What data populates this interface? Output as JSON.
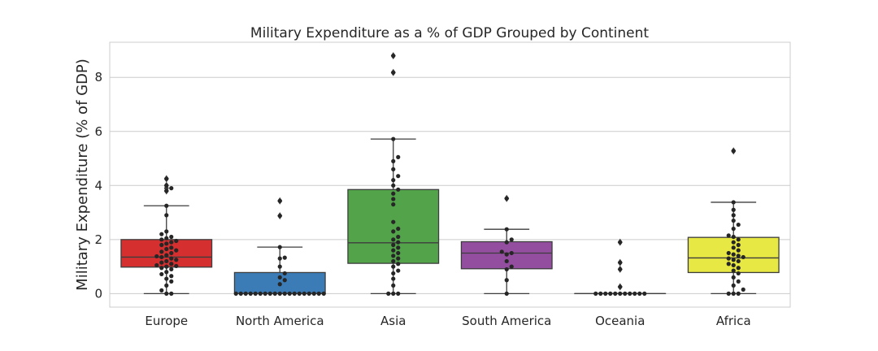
{
  "chart_data": {
    "type": "box",
    "title": "Military Expenditure as a % of GDP Grouped by Continent",
    "xlabel": "",
    "ylabel": "Military Expenditure (% of GDP)",
    "ylim": [
      -0.5,
      9.3
    ],
    "yticks": [
      0,
      2,
      4,
      6,
      8
    ],
    "grid": true,
    "categories": [
      "Europe",
      "North America",
      "Asia",
      "South America",
      "Oceania",
      "Africa"
    ],
    "colors": [
      "#d62f2f",
      "#3b7cb7",
      "#53a34b",
      "#944ea0",
      "#f07d1e",
      "#e8e845"
    ],
    "boxes": [
      {
        "category": "Europe",
        "q1": 0.98,
        "median": 1.35,
        "q3": 2.0,
        "whisker_low": 0.0,
        "whisker_high": 3.25,
        "outliers": [
          3.8,
          3.9,
          4.0,
          4.25
        ],
        "points": [
          0,
          0,
          0.12,
          0.3,
          0.45,
          0.55,
          0.65,
          0.72,
          0.8,
          0.9,
          0.95,
          1.0,
          1.02,
          1.05,
          1.1,
          1.15,
          1.2,
          1.25,
          1.3,
          1.35,
          1.38,
          1.42,
          1.5,
          1.55,
          1.6,
          1.65,
          1.7,
          1.8,
          1.85,
          1.9,
          1.95,
          2.0,
          2.05,
          2.1,
          2.2,
          2.3,
          2.9,
          3.25,
          3.8,
          3.9,
          4.0,
          4.25
        ]
      },
      {
        "category": "North America",
        "q1": 0.0,
        "median": 0.0,
        "q3": 0.78,
        "whisker_low": 0.0,
        "whisker_high": 1.72,
        "outliers": [
          2.88,
          3.43
        ],
        "points": [
          0,
          0,
          0,
          0,
          0,
          0,
          0,
          0,
          0,
          0,
          0,
          0,
          0,
          0,
          0,
          0,
          0,
          0,
          0,
          0.35,
          0.5,
          0.6,
          0.75,
          1.0,
          1.3,
          1.33,
          1.72,
          2.88,
          3.43
        ]
      },
      {
        "category": "Asia",
        "q1": 1.12,
        "median": 1.88,
        "q3": 3.85,
        "whisker_low": 0.0,
        "whisker_high": 5.72,
        "outliers": [
          8.18,
          8.8
        ],
        "points": [
          0,
          0,
          0,
          0.3,
          0.55,
          0.75,
          0.85,
          1.0,
          1.1,
          1.2,
          1.3,
          1.4,
          1.5,
          1.6,
          1.7,
          1.8,
          1.9,
          2.0,
          2.1,
          2.3,
          2.4,
          2.65,
          3.3,
          3.5,
          3.7,
          3.85,
          4.0,
          4.2,
          4.35,
          4.6,
          4.9,
          5.05,
          5.72,
          8.18,
          8.8
        ]
      },
      {
        "category": "South America",
        "q1": 0.92,
        "median": 1.5,
        "q3": 1.92,
        "whisker_low": 0.0,
        "whisker_high": 2.38,
        "outliers": [
          3.52
        ],
        "points": [
          0,
          0.5,
          0.9,
          1.0,
          1.2,
          1.45,
          1.5,
          1.55,
          1.9,
          2.0,
          2.38,
          3.52
        ]
      },
      {
        "category": "Oceania",
        "q1": 0.0,
        "median": 0.0,
        "q3": 0.0,
        "whisker_low": 0.0,
        "whisker_high": 0.0,
        "outliers": [
          0.25,
          0.9,
          1.15,
          1.9
        ],
        "points": [
          0,
          0,
          0,
          0,
          0,
          0,
          0,
          0,
          0,
          0,
          0,
          0.25,
          0.9,
          1.15,
          1.9
        ]
      },
      {
        "category": "Africa",
        "q1": 0.78,
        "median": 1.32,
        "q3": 2.08,
        "whisker_low": 0.0,
        "whisker_high": 3.38,
        "outliers": [
          5.28
        ],
        "points": [
          0,
          0,
          0,
          0.15,
          0.3,
          0.45,
          0.6,
          0.75,
          0.85,
          0.95,
          1.05,
          1.1,
          1.2,
          1.25,
          1.3,
          1.35,
          1.4,
          1.45,
          1.5,
          1.6,
          1.7,
          1.8,
          1.9,
          2.0,
          2.1,
          2.15,
          2.4,
          2.55,
          2.7,
          2.9,
          3.1,
          3.38,
          5.28
        ]
      }
    ]
  }
}
